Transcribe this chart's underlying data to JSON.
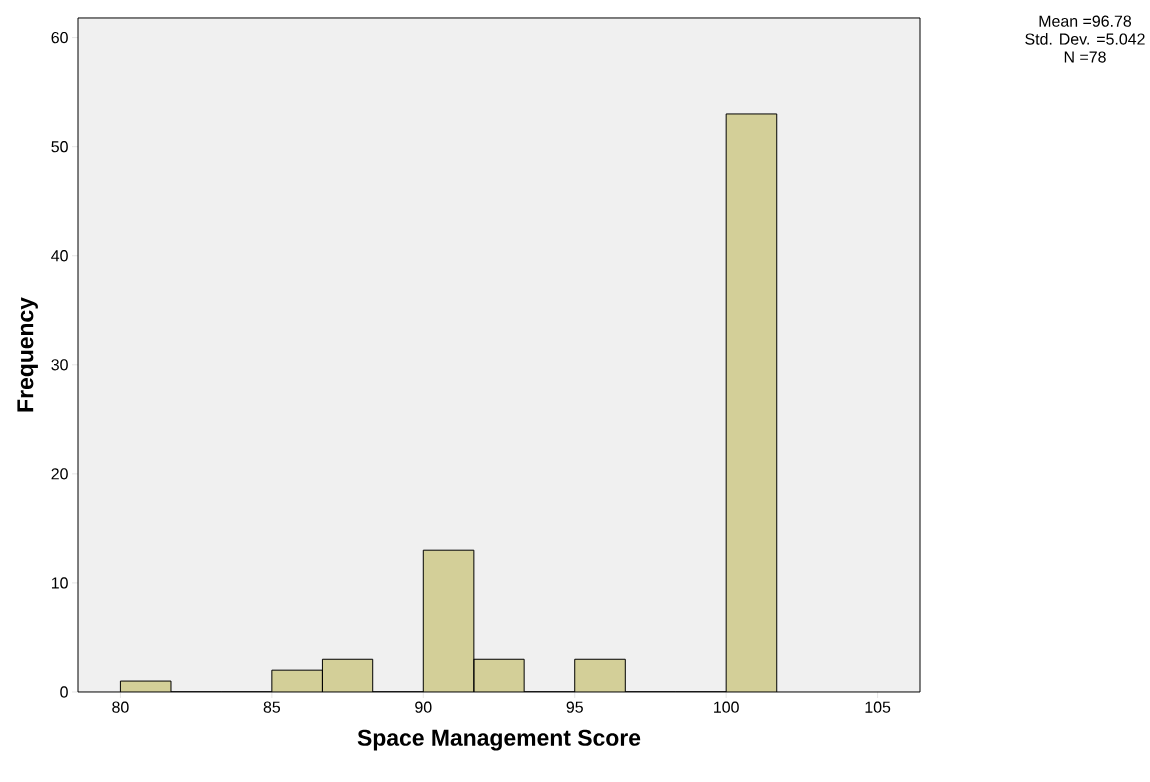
{
  "chart_data": {
    "type": "histogram",
    "xlabel": "Space Management Score",
    "ylabel": "Frequency",
    "bins": [
      80,
      81.67,
      83.33,
      85,
      86.67,
      88.33,
      90,
      91.67,
      93.33,
      95,
      96.67,
      98.33,
      100,
      101.67
    ],
    "values": [
      1,
      0,
      0,
      2,
      3,
      0,
      13,
      3,
      0,
      3,
      0,
      0,
      53
    ],
    "color": "#d3cf98",
    "xlim": [
      78.6,
      106.4
    ],
    "ylim": [
      0,
      61.8
    ],
    "xticks": [
      80,
      85,
      90,
      95,
      100,
      105
    ],
    "yticks": [
      0,
      10,
      20,
      30,
      40,
      50,
      60
    ],
    "grid": false,
    "annotations": [
      "Mean =96.78",
      "Std. Dev. =5.042",
      "N =78"
    ]
  }
}
